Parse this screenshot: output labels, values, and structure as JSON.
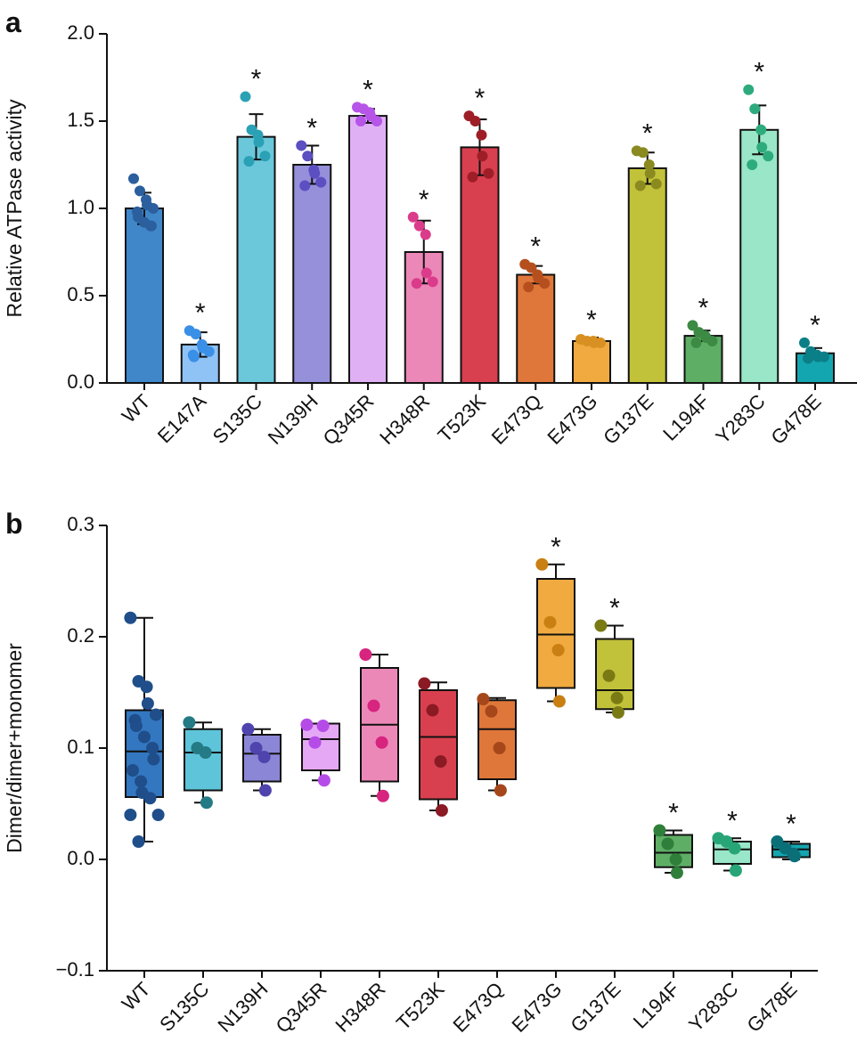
{
  "chart_data": [
    {
      "type": "bar",
      "label": "a",
      "ylabel": "Relative ATPase activity",
      "categories": [
        "WT",
        "E147A",
        "S135C",
        "N139H",
        "Q345R",
        "H348R",
        "T523K",
        "E473Q",
        "E473G",
        "G137E",
        "L194F",
        "Y283C",
        "G478E"
      ],
      "values": [
        1.0,
        0.22,
        1.41,
        1.25,
        1.53,
        0.75,
        1.35,
        0.62,
        0.24,
        1.23,
        0.27,
        1.45,
        0.17
      ],
      "errors": [
        0.09,
        0.07,
        0.13,
        0.11,
        0.04,
        0.18,
        0.16,
        0.05,
        0.02,
        0.09,
        0.03,
        0.14,
        0.03
      ],
      "points": [
        [
          1.17,
          1.1,
          1.05,
          1.02,
          1.0,
          0.98,
          0.95,
          0.92,
          0.9,
          0.9
        ],
        [
          0.3,
          0.28,
          0.22,
          0.2,
          0.18,
          0.16,
          0.15
        ],
        [
          1.64,
          1.45,
          1.42,
          1.38,
          1.3,
          1.27
        ],
        [
          1.36,
          1.3,
          1.22,
          1.2,
          1.15,
          1.13
        ],
        [
          1.58,
          1.57,
          1.55,
          1.53,
          1.5,
          1.5
        ],
        [
          0.95,
          0.9,
          0.85,
          0.63,
          0.58,
          0.57
        ],
        [
          1.53,
          1.5,
          1.42,
          1.3,
          1.2,
          1.18
        ],
        [
          0.68,
          0.66,
          0.62,
          0.6,
          0.57,
          0.55
        ],
        [
          0.25,
          0.24,
          0.24,
          0.23,
          0.23
        ],
        [
          1.33,
          1.32,
          1.25,
          1.2,
          1.14,
          1.13
        ],
        [
          0.33,
          0.29,
          0.27,
          0.26,
          0.24,
          0.23
        ],
        [
          1.68,
          1.57,
          1.45,
          1.35,
          1.3,
          1.25
        ],
        [
          0.23,
          0.18,
          0.16,
          0.15,
          0.15,
          0.14
        ]
      ],
      "colors": [
        "#3f87c9",
        "#8fc2f5",
        "#6bc8db",
        "#9590d9",
        "#e0b0f5",
        "#ec88b8",
        "#d9404f",
        "#e0773a",
        "#f0aa40",
        "#c2c23a",
        "#5fae66",
        "#99e6c8",
        "#14a6b0"
      ],
      "point_colors": [
        "#2b5f9e",
        "#3a8fe6",
        "#2aa1b5",
        "#5b4fc2",
        "#b655e8",
        "#db3b8b",
        "#9e1e28",
        "#b5501e",
        "#d99022",
        "#8a8a20",
        "#3d8a45",
        "#2eab7d",
        "#0b7f87"
      ],
      "annotations": [
        null,
        "*",
        "*",
        "*",
        "*",
        "*",
        "*",
        "*",
        "*",
        "*",
        "*",
        "*",
        "*"
      ],
      "ylim": [
        0,
        2
      ],
      "yticks": [
        {
          "value": 0,
          "label": "0.0"
        },
        0.5,
        {
          "value": 1,
          "label": "1.0"
        },
        1.5,
        {
          "value": 2,
          "label": "2.0"
        }
      ]
    },
    {
      "type": "box",
      "label": "b",
      "ylabel": "Dimer/dimer+monomer",
      "categories": [
        "WT",
        "S135C",
        "N139H",
        "Q345R",
        "H348R",
        "T523K",
        "E473Q",
        "E473G",
        "G137E",
        "L194F",
        "Y283C",
        "G478E"
      ],
      "boxes": [
        {
          "min": 0.016,
          "q1": 0.056,
          "median": 0.097,
          "q3": 0.134,
          "max": 0.217,
          "points": [
            0.217,
            0.16,
            0.155,
            0.14,
            0.13,
            0.125,
            0.12,
            0.11,
            0.1,
            0.09,
            0.08,
            0.07,
            0.06,
            0.055,
            0.04,
            0.04,
            0.016
          ]
        },
        {
          "min": 0.051,
          "q1": 0.062,
          "median": 0.096,
          "q3": 0.117,
          "max": 0.123,
          "points": [
            0.123,
            0.1,
            0.096,
            0.051
          ]
        },
        {
          "min": 0.062,
          "q1": 0.07,
          "median": 0.095,
          "q3": 0.112,
          "max": 0.117,
          "points": [
            0.117,
            0.1,
            0.092,
            0.062
          ]
        },
        {
          "min": 0.071,
          "q1": 0.08,
          "median": 0.108,
          "q3": 0.122,
          "max": 0.122,
          "points": [
            0.121,
            0.105,
            0.12,
            0.071
          ]
        },
        {
          "min": 0.057,
          "q1": 0.07,
          "median": 0.121,
          "q3": 0.172,
          "max": 0.184,
          "points": [
            0.184,
            0.138,
            0.105,
            0.057
          ]
        },
        {
          "min": 0.044,
          "q1": 0.054,
          "median": 0.11,
          "q3": 0.152,
          "max": 0.159,
          "points": [
            0.158,
            0.134,
            0.088,
            0.044
          ]
        },
        {
          "min": 0.062,
          "q1": 0.072,
          "median": 0.117,
          "q3": 0.143,
          "max": 0.145,
          "points": [
            0.144,
            0.133,
            0.1,
            0.062
          ]
        },
        {
          "min": 0.142,
          "q1": 0.154,
          "median": 0.202,
          "q3": 0.252,
          "max": 0.265,
          "points": [
            0.265,
            0.213,
            0.188,
            0.142
          ]
        },
        {
          "min": 0.132,
          "q1": 0.135,
          "median": 0.152,
          "q3": 0.198,
          "max": 0.21,
          "points": [
            0.21,
            0.165,
            0.145,
            0.132
          ]
        },
        {
          "min": -0.012,
          "q1": -0.007,
          "median": 0.006,
          "q3": 0.022,
          "max": 0.026,
          "points": [
            0.026,
            0.014,
            0.0,
            -0.012
          ]
        },
        {
          "min": -0.01,
          "q1": -0.004,
          "median": 0.009,
          "q3": 0.016,
          "max": 0.019,
          "points": [
            0.019,
            0.016,
            0.01,
            -0.01
          ]
        },
        {
          "min": 0.0,
          "q1": 0.002,
          "median": 0.009,
          "q3": 0.014,
          "max": 0.016,
          "points": [
            0.016,
            0.01,
            0.005,
            0.003
          ]
        }
      ],
      "colors": [
        "#3377c0",
        "#5ec4d9",
        "#8b87d6",
        "#e5a8f5",
        "#ec88b8",
        "#d9404f",
        "#e0773a",
        "#f0aa40",
        "#c2c23a",
        "#5fae66",
        "#99e6c8",
        "#14a6b0"
      ],
      "point_colors": [
        "#1f4e8a",
        "#247a85",
        "#4f44ad",
        "#b64ce8",
        "#d6247f",
        "#8a1a24",
        "#a5471b",
        "#c97f12",
        "#7a7a14",
        "#2f7f3a",
        "#28a577",
        "#0b6f78"
      ],
      "annotations": [
        null,
        null,
        null,
        null,
        null,
        null,
        null,
        "*",
        "*",
        "*",
        "*",
        "*"
      ],
      "ylim": [
        -0.1,
        0.3
      ],
      "yticks": [
        {
          "value": -0.1,
          "label": "−0.1"
        },
        {
          "value": 0,
          "label": "0.0"
        },
        0.1,
        0.2,
        0.3
      ]
    }
  ]
}
